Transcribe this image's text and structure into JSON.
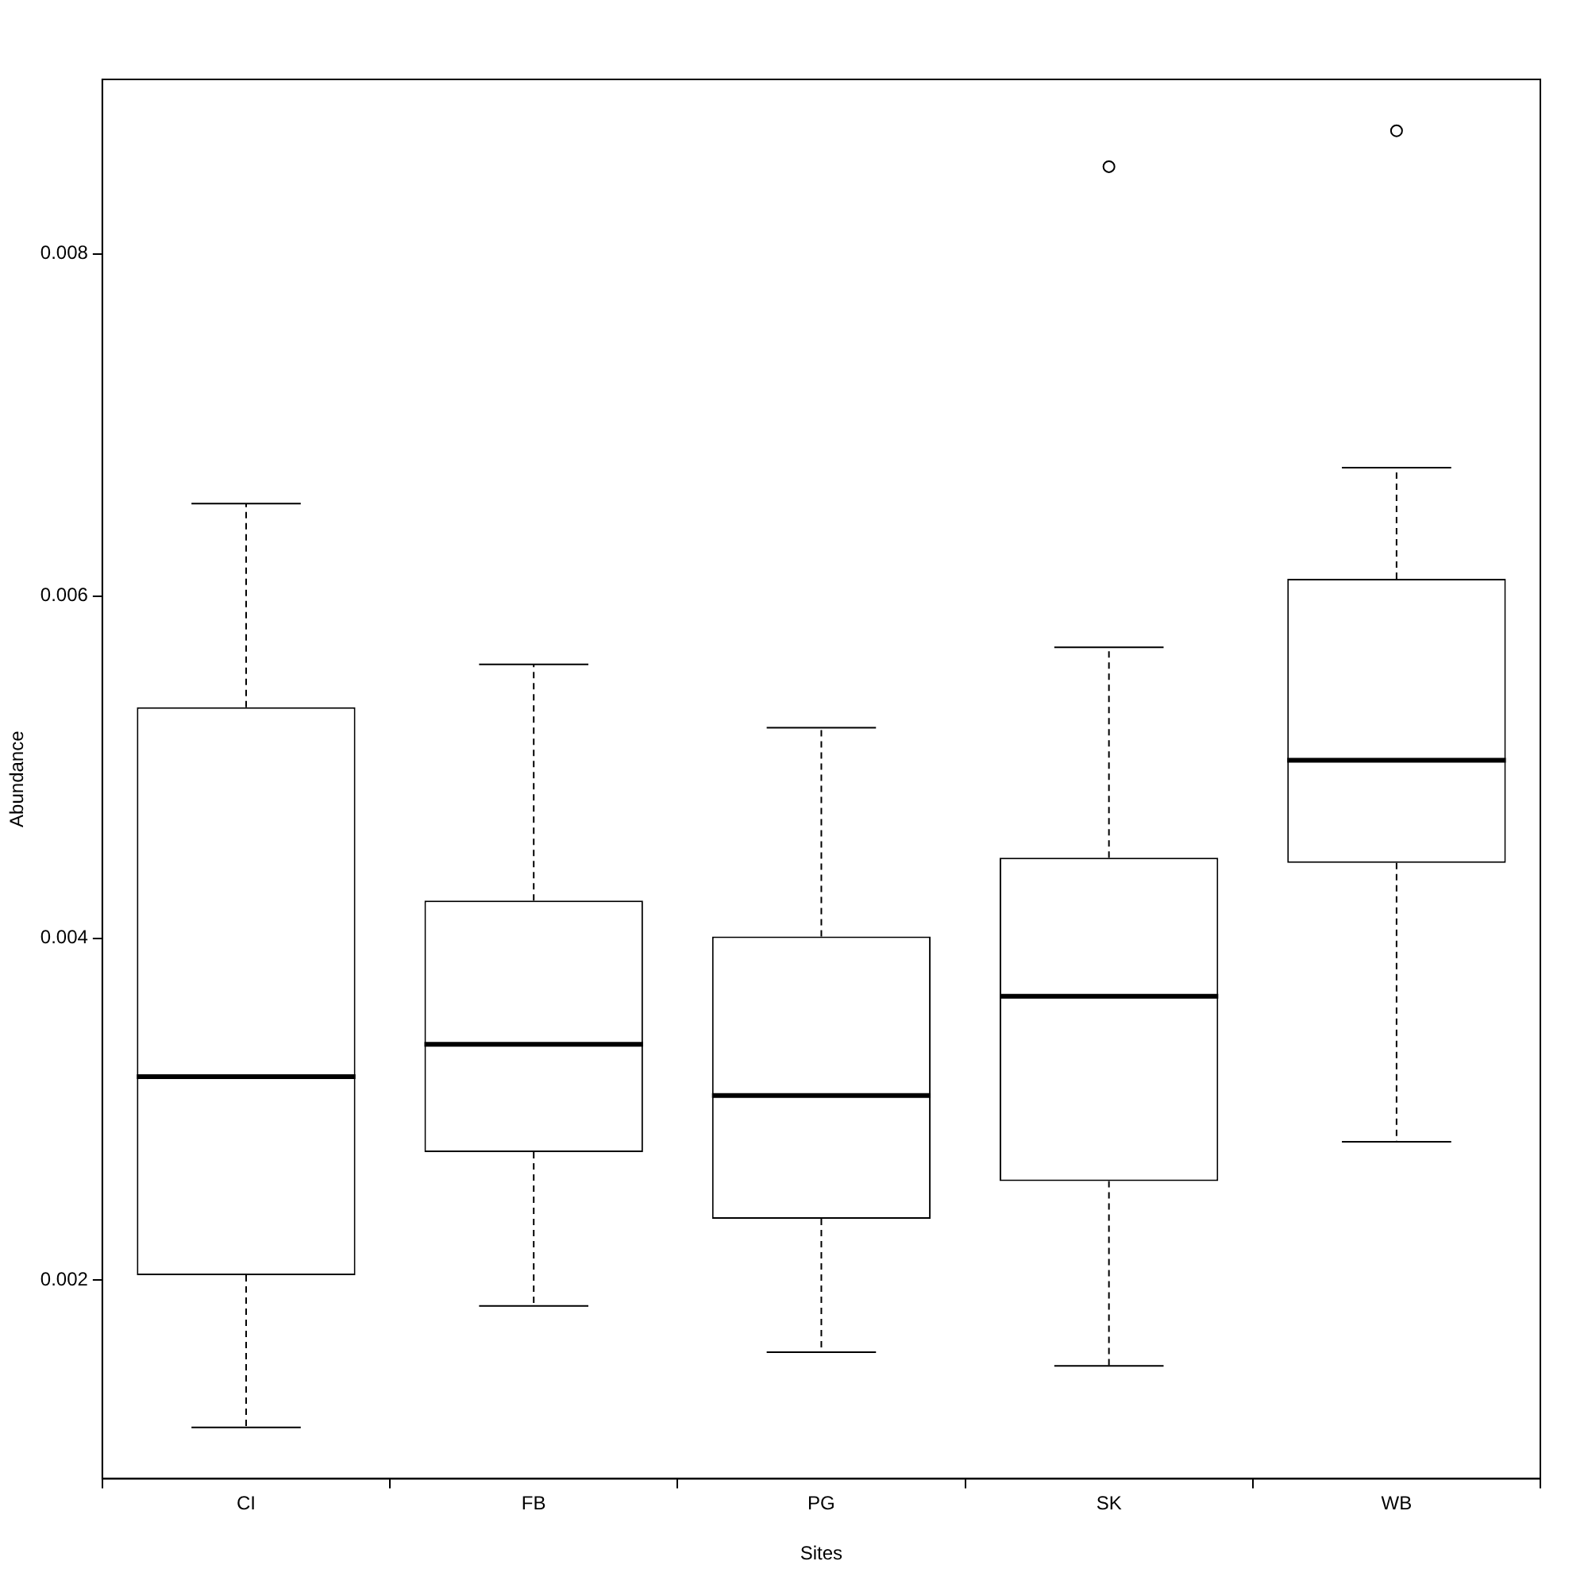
{
  "chart_data": {
    "type": "box",
    "xlabel": "Sites",
    "ylabel": "Abundance",
    "categories": [
      "CI",
      "FB",
      "PG",
      "SK",
      "WB"
    ],
    "boxes": [
      {
        "low": 0.00114,
        "q1": 0.00203,
        "median": 0.00319,
        "q3": 0.00535,
        "high": 0.00654
      },
      {
        "low": 0.00185,
        "q1": 0.00275,
        "median": 0.00338,
        "q3": 0.00422,
        "high": 0.0056
      },
      {
        "low": 0.00158,
        "q1": 0.00236,
        "median": 0.00308,
        "q3": 0.00401,
        "high": 0.00523
      },
      {
        "low": 0.0015,
        "q1": 0.00258,
        "median": 0.00366,
        "q3": 0.00447,
        "high": 0.0057,
        "outliers": [
          0.00851
        ]
      },
      {
        "low": 0.00281,
        "q1": 0.00444,
        "median": 0.00504,
        "q3": 0.0061,
        "high": 0.00675,
        "outliers": [
          0.00872
        ]
      }
    ],
    "ylim": [
      0.00084,
      0.00902
    ],
    "yticks": [
      0.002,
      0.004,
      0.006,
      0.008
    ]
  }
}
